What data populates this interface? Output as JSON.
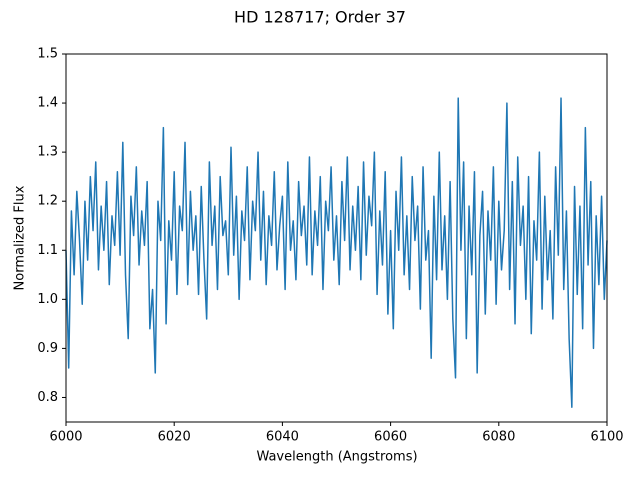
{
  "chart_data": {
    "type": "line",
    "title": "HD 128717; Order 37",
    "x_label": "Wavelength (Angstroms)",
    "y_label": "Normalized Flux",
    "xlim": [
      6000,
      6100
    ],
    "ylim": [
      0.75,
      1.5
    ],
    "xticks": [
      6000,
      6020,
      6040,
      6060,
      6080,
      6100
    ],
    "yticks": [
      0.8,
      0.9,
      {
        "value": 1,
        "label": "1.0"
      },
      1.1,
      1.2,
      1.3,
      1.4,
      1.5
    ],
    "series": [
      {
        "color": "#1f77b4",
        "x": [
          6000,
          6000.5,
          6001,
          6001.5,
          6002,
          6002.5,
          6003,
          6003.5,
          6004,
          6004.5,
          6005,
          6005.5,
          6006,
          6006.5,
          6007,
          6007.5,
          6008,
          6008.5,
          6009,
          6009.5,
          6010,
          6010.5,
          6011,
          6011.5,
          6012,
          6012.5,
          6013,
          6013.5,
          6014,
          6014.5,
          6015,
          6015.5,
          6016,
          6016.5,
          6017,
          6017.5,
          6018,
          6018.5,
          6019,
          6019.5,
          6020,
          6020.5,
          6021,
          6021.5,
          6022,
          6022.5,
          6023,
          6023.5,
          6024,
          6024.5,
          6025,
          6025.5,
          6026,
          6026.5,
          6027,
          6027.5,
          6028,
          6028.5,
          6029,
          6029.5,
          6030,
          6030.5,
          6031,
          6031.5,
          6032,
          6032.5,
          6033,
          6033.5,
          6034,
          6034.5,
          6035,
          6035.5,
          6036,
          6036.5,
          6037,
          6037.5,
          6038,
          6038.5,
          6039,
          6039.5,
          6040,
          6040.5,
          6041,
          6041.5,
          6042,
          6042.5,
          6043,
          6043.5,
          6044,
          6044.5,
          6045,
          6045.5,
          6046,
          6046.5,
          6047,
          6047.5,
          6048,
          6048.5,
          6049,
          6049.5,
          6050,
          6050.5,
          6051,
          6051.5,
          6052,
          6052.5,
          6053,
          6053.5,
          6054,
          6054.5,
          6055,
          6055.5,
          6056,
          6056.5,
          6057,
          6057.5,
          6058,
          6058.5,
          6059,
          6059.5,
          6060,
          6060.5,
          6061,
          6061.5,
          6062,
          6062.5,
          6063,
          6063.5,
          6064,
          6064.5,
          6065,
          6065.5,
          6066,
          6066.5,
          6067,
          6067.5,
          6068,
          6068.5,
          6069,
          6069.5,
          6070,
          6070.5,
          6071,
          6071.5,
          6072,
          6072.5,
          6073,
          6073.5,
          6074,
          6074.5,
          6075,
          6075.5,
          6076,
          6076.5,
          6077,
          6077.5,
          6078,
          6078.5,
          6079,
          6079.5,
          6080,
          6080.5,
          6081,
          6081.5,
          6082,
          6082.5,
          6083,
          6083.5,
          6084,
          6084.5,
          6085,
          6085.5,
          6086,
          6086.5,
          6087,
          6087.5,
          6088,
          6088.5,
          6089,
          6089.5,
          6090,
          6090.5,
          6091,
          6091.5,
          6092,
          6092.5,
          6093,
          6093.5,
          6094,
          6094.5,
          6095,
          6095.5,
          6096,
          6096.5,
          6097,
          6097.5,
          6098,
          6098.5,
          6099,
          6099.5,
          6100
        ],
        "values": [
          1.1,
          0.86,
          1.18,
          1.05,
          1.22,
          1.12,
          0.99,
          1.2,
          1.08,
          1.25,
          1.14,
          1.28,
          1.06,
          1.19,
          1.1,
          1.24,
          1.03,
          1.17,
          1.11,
          1.26,
          1.09,
          1.32,
          1.05,
          0.92,
          1.21,
          1.13,
          1.27,
          1.07,
          1.18,
          1.11,
          1.24,
          0.94,
          1.02,
          0.85,
          1.2,
          1.12,
          1.35,
          0.95,
          1.16,
          1.08,
          1.26,
          1.01,
          1.19,
          1.14,
          1.32,
          1.03,
          1.22,
          1.1,
          1.17,
          1.01,
          1.23,
          1.08,
          0.96,
          1.28,
          1.11,
          1.19,
          1.02,
          1.25,
          1.13,
          1.16,
          1.05,
          1.31,
          1.09,
          1.21,
          1.0,
          1.18,
          1.12,
          1.27,
          1.04,
          1.2,
          1.14,
          1.3,
          1.08,
          1.22,
          1.03,
          1.17,
          1.11,
          1.26,
          1.06,
          1.15,
          1.21,
          1.02,
          1.28,
          1.1,
          1.16,
          1.04,
          1.24,
          1.13,
          1.19,
          1.07,
          1.29,
          1.05,
          1.18,
          1.11,
          1.25,
          1.02,
          1.2,
          1.14,
          1.27,
          1.08,
          1.17,
          1.03,
          1.24,
          1.12,
          1.29,
          1.06,
          1.19,
          1.1,
          1.23,
          1.04,
          1.28,
          1.09,
          1.21,
          1.15,
          1.3,
          1.01,
          1.18,
          1.07,
          1.26,
          0.97,
          1.14,
          0.94,
          1.22,
          1.1,
          1.29,
          1.05,
          1.17,
          1.02,
          1.25,
          1.12,
          1.19,
          0.98,
          1.27,
          1.08,
          1.14,
          0.88,
          1.21,
          1.04,
          1.3,
          1.06,
          1.17,
          1.0,
          1.24,
          0.96,
          0.84,
          1.41,
          1.1,
          1.28,
          0.92,
          1.19,
          1.05,
          1.26,
          0.85,
          1.13,
          1.22,
          0.97,
          1.18,
          1.08,
          1.27,
          0.99,
          1.2,
          1.06,
          1.14,
          1.4,
          1.02,
          1.24,
          0.95,
          1.29,
          1.11,
          1.19,
          1.0,
          1.25,
          0.93,
          1.16,
          1.08,
          1.3,
          0.98,
          1.21,
          1.04,
          1.14,
          0.96,
          1.27,
          1.09,
          1.41,
          1.02,
          1.18,
          0.92,
          0.78,
          1.23,
          1.01,
          1.19,
          0.94,
          1.35,
          1.07,
          1.24,
          0.9,
          1.17,
          1.03,
          1.21,
          1.0,
          1.12
        ]
      }
    ]
  }
}
